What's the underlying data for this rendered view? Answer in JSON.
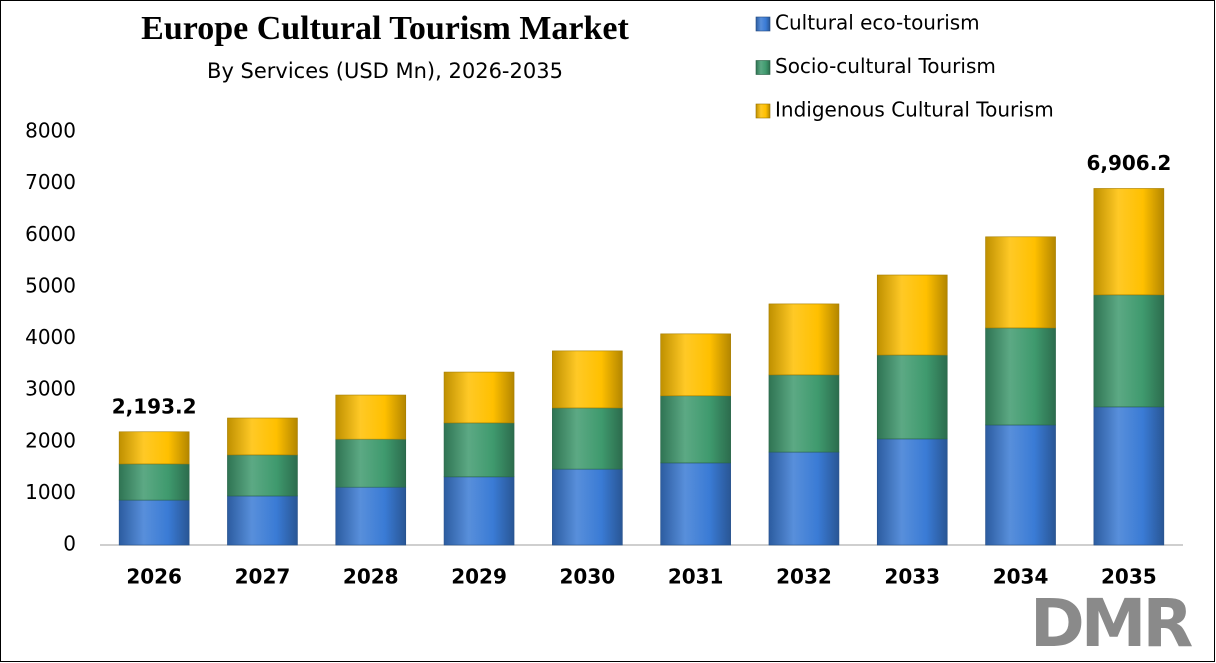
{
  "chart_data": {
    "type": "stacked_bar",
    "title": "Europe Cultural Tourism Market",
    "subtitle": "By Services (USD Mn), 2026-2035",
    "watermark": "DMR",
    "categories": [
      "2026",
      "2027",
      "2028",
      "2029",
      "2030",
      "2031",
      "2032",
      "2033",
      "2034",
      "2035"
    ],
    "series": [
      {
        "name": "Cultural eco-tourism",
        "color": "#3a7bd5",
        "values": [
          870,
          950,
          1120,
          1320,
          1470,
          1590,
          1800,
          2055,
          2325,
          2675
        ]
      },
      {
        "name": "Socio-cultural Tourism",
        "color": "#3f9a6e",
        "values": [
          700,
          795,
          930,
          1045,
          1185,
          1300,
          1495,
          1625,
          1880,
          2170
        ]
      },
      {
        "name": "Indigenous Cultural Tourism",
        "color": "#ffc000",
        "values": [
          623.2,
          715,
          855,
          985,
          1105,
          1200,
          1375,
          1550,
          1765,
          2061.2
        ]
      }
    ],
    "annotations": [
      {
        "category": "2026",
        "value": 2193.2,
        "label": "2,193.2"
      },
      {
        "category": "2035",
        "value": 6906.2,
        "label": "6,906.2"
      }
    ],
    "ylim": [
      0,
      8000
    ],
    "yticks": [
      0,
      1000,
      2000,
      3000,
      4000,
      5000,
      6000,
      7000,
      8000
    ],
    "grid": false
  }
}
